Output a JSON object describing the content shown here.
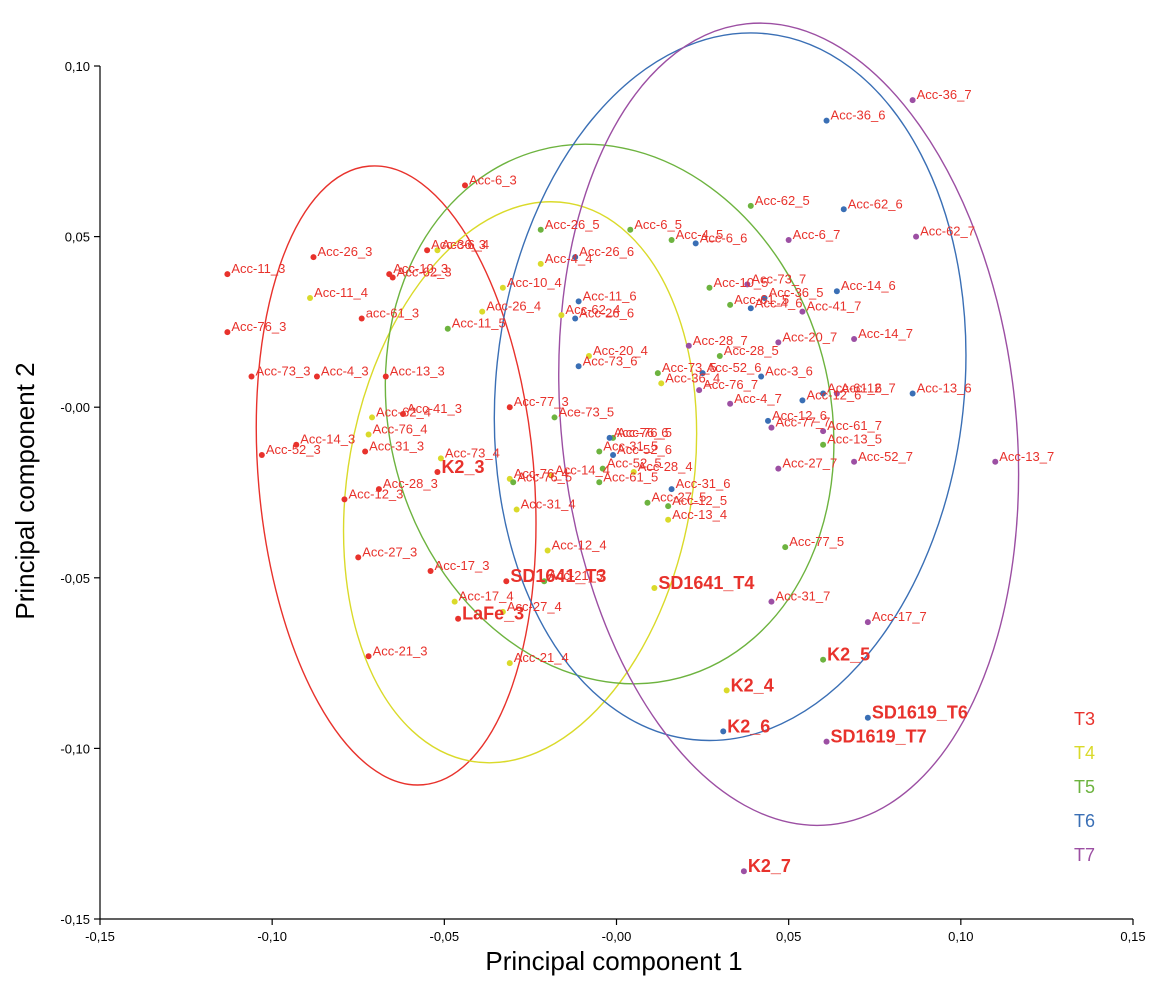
{
  "chart_data": {
    "type": "scatter",
    "xlabel": "Principal component 1",
    "ylabel": "Principal component 2",
    "xlim": [
      -0.15,
      0.15
    ],
    "ylim": [
      -0.15,
      0.1
    ],
    "xticks": [
      -0.15,
      -0.1,
      -0.05,
      0.0,
      0.05,
      0.1,
      0.15
    ],
    "xtick_labels": [
      "-0,15",
      "-0,10",
      "-0,05",
      "-0,00",
      "0,05",
      "0,10",
      "0,15"
    ],
    "yticks": [
      -0.15,
      -0.1,
      -0.05,
      0.0,
      0.05,
      0.1
    ],
    "ytick_labels": [
      "-0,15",
      "-0,10",
      "-0,05",
      "-0,00",
      "0,05",
      "0,10"
    ],
    "grid": false,
    "legend_position": "bottom-right",
    "label_color": "#e8322c",
    "series": [
      {
        "name": "T3",
        "color": "#e8322c",
        "ellipse": {
          "cx": -0.064,
          "cy": -0.02,
          "rx": 0.04,
          "ry": 0.091,
          "angle_deg": -5
        },
        "points": [
          {
            "x": -0.044,
            "y": 0.065,
            "label": "Acc-6_3"
          },
          {
            "x": -0.113,
            "y": 0.039,
            "label": "Acc-11_3"
          },
          {
            "x": -0.088,
            "y": 0.044,
            "label": "Acc-26_3"
          },
          {
            "x": -0.055,
            "y": 0.046,
            "label": "Acc-36_3"
          },
          {
            "x": -0.066,
            "y": 0.039,
            "label": "Acc-10_3"
          },
          {
            "x": -0.065,
            "y": 0.038,
            "label": "Acc-62_3"
          },
          {
            "x": -0.074,
            "y": 0.026,
            "label": "acc-61_3"
          },
          {
            "x": -0.113,
            "y": 0.022,
            "label": "Acc-76_3"
          },
          {
            "x": -0.106,
            "y": 0.009,
            "label": "Acc-73_3"
          },
          {
            "x": -0.087,
            "y": 0.009,
            "label": "Acc-4_3"
          },
          {
            "x": -0.067,
            "y": 0.009,
            "label": "Acc-13_3"
          },
          {
            "x": -0.062,
            "y": -0.002,
            "label": "Acc-41_3"
          },
          {
            "x": -0.031,
            "y": 0.0,
            "label": "Acc-77_3"
          },
          {
            "x": -0.093,
            "y": -0.011,
            "label": "Acc-14_3"
          },
          {
            "x": -0.103,
            "y": -0.014,
            "label": "Acc-52_3"
          },
          {
            "x": -0.073,
            "y": -0.013,
            "label": "Acc-31_3"
          },
          {
            "x": -0.052,
            "y": -0.019,
            "label": "K2_3",
            "bold": true
          },
          {
            "x": -0.069,
            "y": -0.024,
            "label": "Acc-28_3"
          },
          {
            "x": -0.079,
            "y": -0.027,
            "label": "Acc-12_3"
          },
          {
            "x": -0.075,
            "y": -0.044,
            "label": "Acc-27_3"
          },
          {
            "x": -0.054,
            "y": -0.048,
            "label": "Acc-17_3"
          },
          {
            "x": -0.032,
            "y": -0.051,
            "label": "SD1641_T3",
            "bold": true
          },
          {
            "x": -0.046,
            "y": -0.062,
            "label": "LaFe_3",
            "bold": true
          },
          {
            "x": -0.072,
            "y": -0.073,
            "label": "Acc-21_3"
          }
        ]
      },
      {
        "name": "T4",
        "color": "#dada2a",
        "ellipse": {
          "cx": -0.028,
          "cy": -0.022,
          "rx": 0.05,
          "ry": 0.083,
          "angle_deg": 10
        },
        "points": [
          {
            "x": -0.052,
            "y": 0.046,
            "label": "Acc-6_4"
          },
          {
            "x": -0.089,
            "y": 0.032,
            "label": "Acc-11_4"
          },
          {
            "x": -0.022,
            "y": 0.042,
            "label": "Acc-4_4"
          },
          {
            "x": -0.033,
            "y": 0.035,
            "label": "Acc-10_4"
          },
          {
            "x": -0.039,
            "y": 0.028,
            "label": "Acc-26_4"
          },
          {
            "x": -0.016,
            "y": 0.027,
            "label": "Acc-62_4"
          },
          {
            "x": -0.008,
            "y": 0.015,
            "label": "Acc-20_4"
          },
          {
            "x": 0.013,
            "y": 0.007,
            "label": "Acc-36_4"
          },
          {
            "x": -0.071,
            "y": -0.003,
            "label": "Acc-62_4"
          },
          {
            "x": -0.072,
            "y": -0.008,
            "label": "Acc-76_4"
          },
          {
            "x": -0.051,
            "y": -0.015,
            "label": "Acc-73_4"
          },
          {
            "x": -0.031,
            "y": -0.021,
            "label": "Acc-76_4"
          },
          {
            "x": -0.019,
            "y": -0.02,
            "label": "Acc-14_4"
          },
          {
            "x": -0.029,
            "y": -0.03,
            "label": "Acc-31_4"
          },
          {
            "x": 0.005,
            "y": -0.019,
            "label": "Acc-28_4"
          },
          {
            "x": 0.015,
            "y": -0.033,
            "label": "Acc-13_4"
          },
          {
            "x": -0.02,
            "y": -0.042,
            "label": "Acc-12_4"
          },
          {
            "x": -0.047,
            "y": -0.057,
            "label": "Acc-17_4"
          },
          {
            "x": -0.033,
            "y": -0.06,
            "label": "Acc-27_4"
          },
          {
            "x": -0.031,
            "y": -0.075,
            "label": "Acc-21_4"
          },
          {
            "x": 0.011,
            "y": -0.053,
            "label": "SD1641_T4",
            "bold": true
          },
          {
            "x": 0.032,
            "y": -0.083,
            "label": "K2_4",
            "bold": true
          }
        ]
      },
      {
        "name": "T5",
        "color": "#6db33f",
        "ellipse": {
          "cx": -0.002,
          "cy": -0.002,
          "rx": 0.064,
          "ry": 0.08,
          "angle_deg": -15
        },
        "points": [
          {
            "x": -0.022,
            "y": 0.052,
            "label": "Acc-26_5"
          },
          {
            "x": 0.004,
            "y": 0.052,
            "label": "Acc-6_5"
          },
          {
            "x": 0.016,
            "y": 0.049,
            "label": "Acc-4_5"
          },
          {
            "x": 0.039,
            "y": 0.059,
            "label": "Acc-62_5"
          },
          {
            "x": -0.049,
            "y": 0.023,
            "label": "Acc-11_5"
          },
          {
            "x": 0.027,
            "y": 0.035,
            "label": "Acc-10_5"
          },
          {
            "x": 0.033,
            "y": 0.03,
            "label": "Acc-61_5"
          },
          {
            "x": 0.03,
            "y": 0.015,
            "label": "Acc-28_5"
          },
          {
            "x": 0.012,
            "y": 0.01,
            "label": "Acc-73_5"
          },
          {
            "x": -0.018,
            "y": -0.003,
            "label": "Ace-73_5"
          },
          {
            "x": -0.001,
            "y": -0.009,
            "label": "Acc-76_5"
          },
          {
            "x": -0.005,
            "y": -0.013,
            "label": "Acc-31_5"
          },
          {
            "x": -0.004,
            "y": -0.018,
            "label": "Acc-52_5"
          },
          {
            "x": -0.03,
            "y": -0.022,
            "label": "Acc-76_5"
          },
          {
            "x": -0.005,
            "y": -0.022,
            "label": "Acc-61_5"
          },
          {
            "x": 0.009,
            "y": -0.028,
            "label": "Acc-27_5"
          },
          {
            "x": 0.015,
            "y": -0.029,
            "label": "Acc-12_5"
          },
          {
            "x": 0.06,
            "y": -0.011,
            "label": "Acc-13_5"
          },
          {
            "x": 0.049,
            "y": -0.041,
            "label": "Acc-77_5"
          },
          {
            "x": -0.021,
            "y": -0.051,
            "label": "Acc-21_5"
          },
          {
            "x": 0.06,
            "y": -0.074,
            "label": "K2_5",
            "bold": true
          }
        ]
      },
      {
        "name": "T6",
        "color": "#3a6fb5",
        "ellipse": {
          "cx": 0.033,
          "cy": 0.006,
          "rx": 0.068,
          "ry": 0.104,
          "angle_deg": 6
        },
        "points": [
          {
            "x": 0.061,
            "y": 0.084,
            "label": "Acc-36_6"
          },
          {
            "x": 0.066,
            "y": 0.058,
            "label": "Acc-62_6"
          },
          {
            "x": 0.023,
            "y": 0.048,
            "label": "Acc-6_6"
          },
          {
            "x": -0.012,
            "y": 0.044,
            "label": "Acc-26_6"
          },
          {
            "x": 0.064,
            "y": 0.034,
            "label": "Acc-14_6"
          },
          {
            "x": 0.043,
            "y": 0.032,
            "label": "Acc-36_5"
          },
          {
            "x": -0.011,
            "y": 0.031,
            "label": "Acc-11_6"
          },
          {
            "x": -0.012,
            "y": 0.026,
            "label": "Acc-26_6"
          },
          {
            "x": 0.039,
            "y": 0.029,
            "label": "Acc-4_6"
          },
          {
            "x": 0.025,
            "y": 0.01,
            "label": "Acc-52_6"
          },
          {
            "x": 0.042,
            "y": 0.009,
            "label": "Acc-3_6"
          },
          {
            "x": 0.06,
            "y": 0.004,
            "label": "Acc-61_6"
          },
          {
            "x": 0.086,
            "y": 0.004,
            "label": "Acc-13_6"
          },
          {
            "x": 0.054,
            "y": 0.002,
            "label": "Acc-12_6"
          },
          {
            "x": -0.011,
            "y": 0.012,
            "label": "Acc-73_6"
          },
          {
            "x": 0.044,
            "y": -0.004,
            "label": "Acc-12_6"
          },
          {
            "x": -0.002,
            "y": -0.009,
            "label": "Acc-76_6"
          },
          {
            "x": -0.001,
            "y": -0.014,
            "label": "Acc-52_6"
          },
          {
            "x": 0.016,
            "y": -0.024,
            "label": "Acc-31_6"
          },
          {
            "x": 0.031,
            "y": -0.095,
            "label": "K2_6",
            "bold": true
          },
          {
            "x": 0.073,
            "y": -0.091,
            "label": "SD1619_T6",
            "bold": true
          }
        ]
      },
      {
        "name": "T7",
        "color": "#9c4fa3",
        "ellipse": {
          "cx": 0.05,
          "cy": -0.005,
          "rx": 0.066,
          "ry": 0.118,
          "angle_deg": -6
        },
        "points": [
          {
            "x": 0.086,
            "y": 0.09,
            "label": "Acc-36_7"
          },
          {
            "x": 0.05,
            "y": 0.049,
            "label": "Acc-6_7"
          },
          {
            "x": 0.087,
            "y": 0.05,
            "label": "Acc-62_7"
          },
          {
            "x": 0.038,
            "y": 0.036,
            "label": "Acc-73_7"
          },
          {
            "x": 0.054,
            "y": 0.028,
            "label": "Acc-41_7"
          },
          {
            "x": 0.047,
            "y": 0.019,
            "label": "Acc-20_7"
          },
          {
            "x": 0.069,
            "y": 0.02,
            "label": "Acc-14_7"
          },
          {
            "x": 0.021,
            "y": 0.018,
            "label": "Acc-28_7"
          },
          {
            "x": 0.024,
            "y": 0.005,
            "label": "Acc-76_7"
          },
          {
            "x": 0.064,
            "y": 0.004,
            "label": "Acc-12_7"
          },
          {
            "x": 0.033,
            "y": 0.001,
            "label": "Acc-4_7"
          },
          {
            "x": 0.045,
            "y": -0.006,
            "label": "Acc-77_7"
          },
          {
            "x": 0.06,
            "y": -0.007,
            "label": "Acc-61_7"
          },
          {
            "x": 0.047,
            "y": -0.018,
            "label": "Acc-27_7"
          },
          {
            "x": 0.069,
            "y": -0.016,
            "label": "Acc-52_7"
          },
          {
            "x": 0.11,
            "y": -0.016,
            "label": "Acc-13_7"
          },
          {
            "x": 0.045,
            "y": -0.057,
            "label": "Acc-31_7"
          },
          {
            "x": 0.073,
            "y": -0.063,
            "label": "Acc-17_7"
          },
          {
            "x": 0.061,
            "y": -0.098,
            "label": "SD1619_T7",
            "bold": true
          },
          {
            "x": 0.037,
            "y": -0.136,
            "label": "K2_7",
            "bold": true
          }
        ]
      }
    ]
  }
}
